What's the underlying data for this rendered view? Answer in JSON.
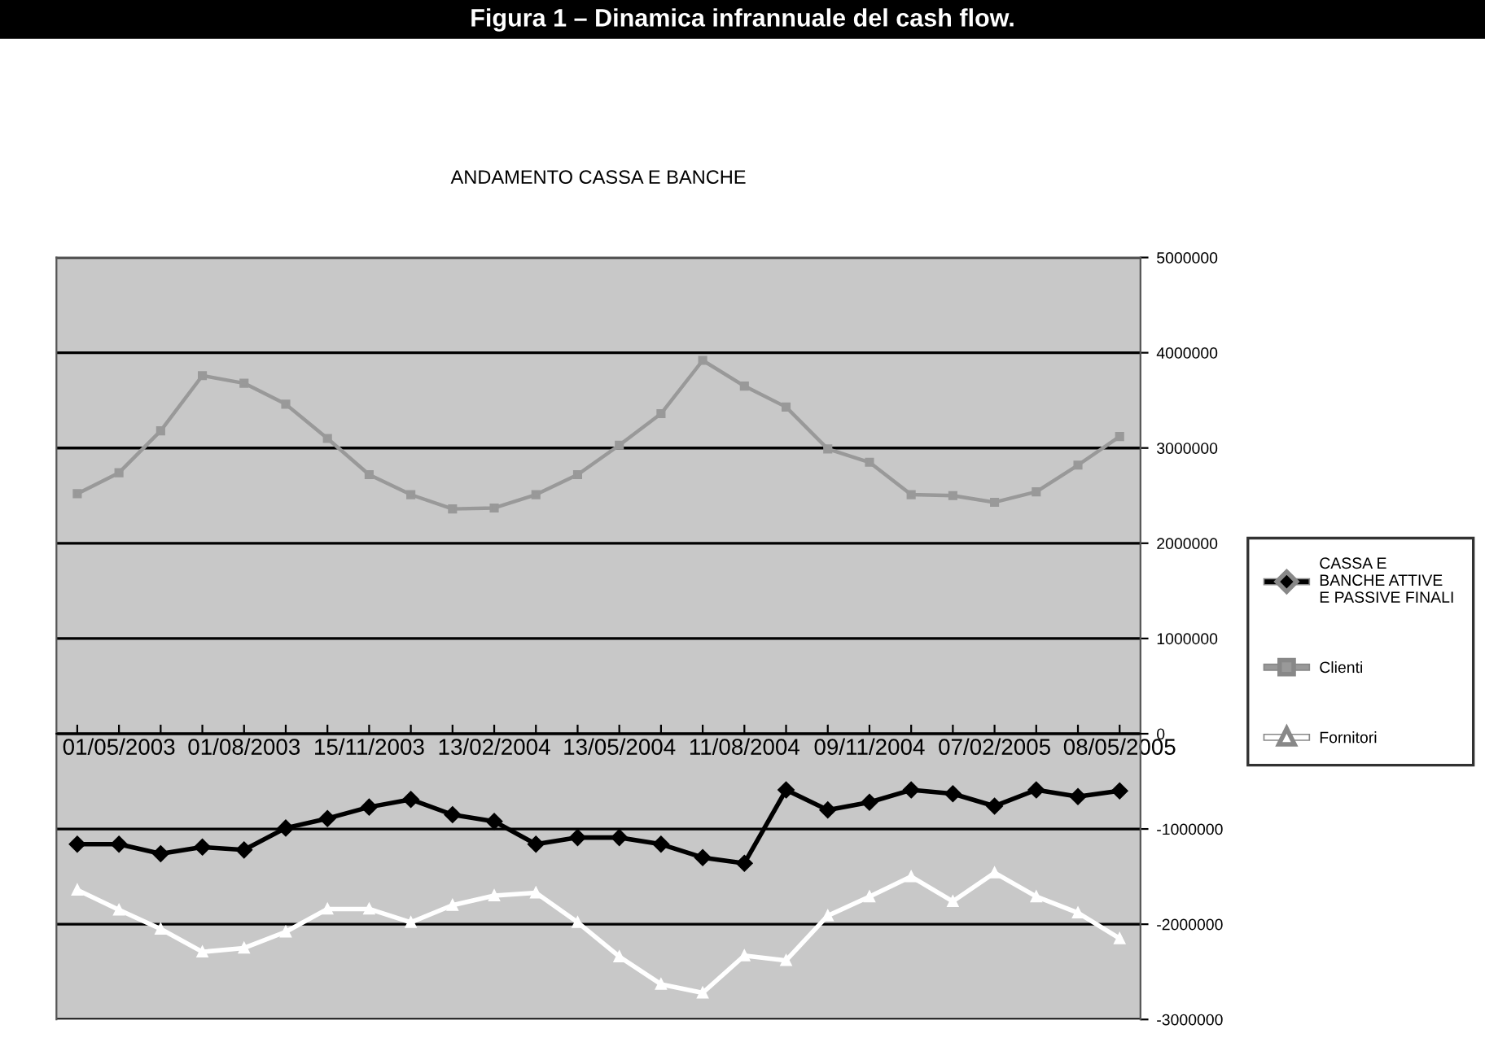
{
  "chart_data": {
    "type": "line",
    "title": "Figura 1 – Dinamica infrannuale del cash flow.",
    "subtitle": "ANDAMENTO CASSA E BANCHE",
    "categories": [
      null,
      "01/05/2003",
      null,
      null,
      "01/08/2003",
      null,
      null,
      "15/11/2003",
      null,
      null,
      "13/02/2004",
      null,
      null,
      "13/05/2004",
      null,
      null,
      "11/08/2004",
      null,
      null,
      "09/11/2004",
      null,
      null,
      "07/02/2005",
      null,
      null,
      "08/05/2005"
    ],
    "series": [
      {
        "name": "CASSA E\nBANCHE ATTIVE\nE PASSIVE FINALI",
        "color": "#000000",
        "marker": "diamond",
        "values": [
          -1160000,
          -1160000,
          -1260000,
          -1190000,
          -1220000,
          -990000,
          -890000,
          -770000,
          -690000,
          -850000,
          -920000,
          -1160000,
          -1090000,
          -1090000,
          -1160000,
          -1300000,
          -1360000,
          -590000,
          -800000,
          -720000,
          -590000,
          -630000,
          -760000,
          -590000,
          -660000,
          -600000
        ]
      },
      {
        "name": "Clienti",
        "color": "#999999",
        "marker": "square",
        "values": [
          2520000,
          2740000,
          3180000,
          3760000,
          3680000,
          3460000,
          3100000,
          2720000,
          2510000,
          2360000,
          2370000,
          2510000,
          2720000,
          3030000,
          3360000,
          3920000,
          3650000,
          3430000,
          2990000,
          2850000,
          2510000,
          2500000,
          2430000,
          2540000,
          2820000,
          3120000
        ]
      },
      {
        "name": "Fornitori",
        "color": "#ffffff",
        "marker": "triangle",
        "values": [
          -1640000,
          -1850000,
          -2050000,
          -2290000,
          -2250000,
          -2080000,
          -1840000,
          -1840000,
          -1980000,
          -1800000,
          -1700000,
          -1670000,
          -1980000,
          -2340000,
          -2630000,
          -2720000,
          -2330000,
          -2380000,
          -1910000,
          -1710000,
          -1500000,
          -1760000,
          -1460000,
          -1710000,
          -1880000,
          -2150000
        ]
      }
    ],
    "ylim": [
      -3000000,
      5000000
    ],
    "yticks": [
      -3000000,
      -2000000,
      -1000000,
      0,
      1000000,
      2000000,
      3000000,
      4000000,
      5000000
    ],
    "grid": "y",
    "legend": "right",
    "line_style": "solid"
  }
}
